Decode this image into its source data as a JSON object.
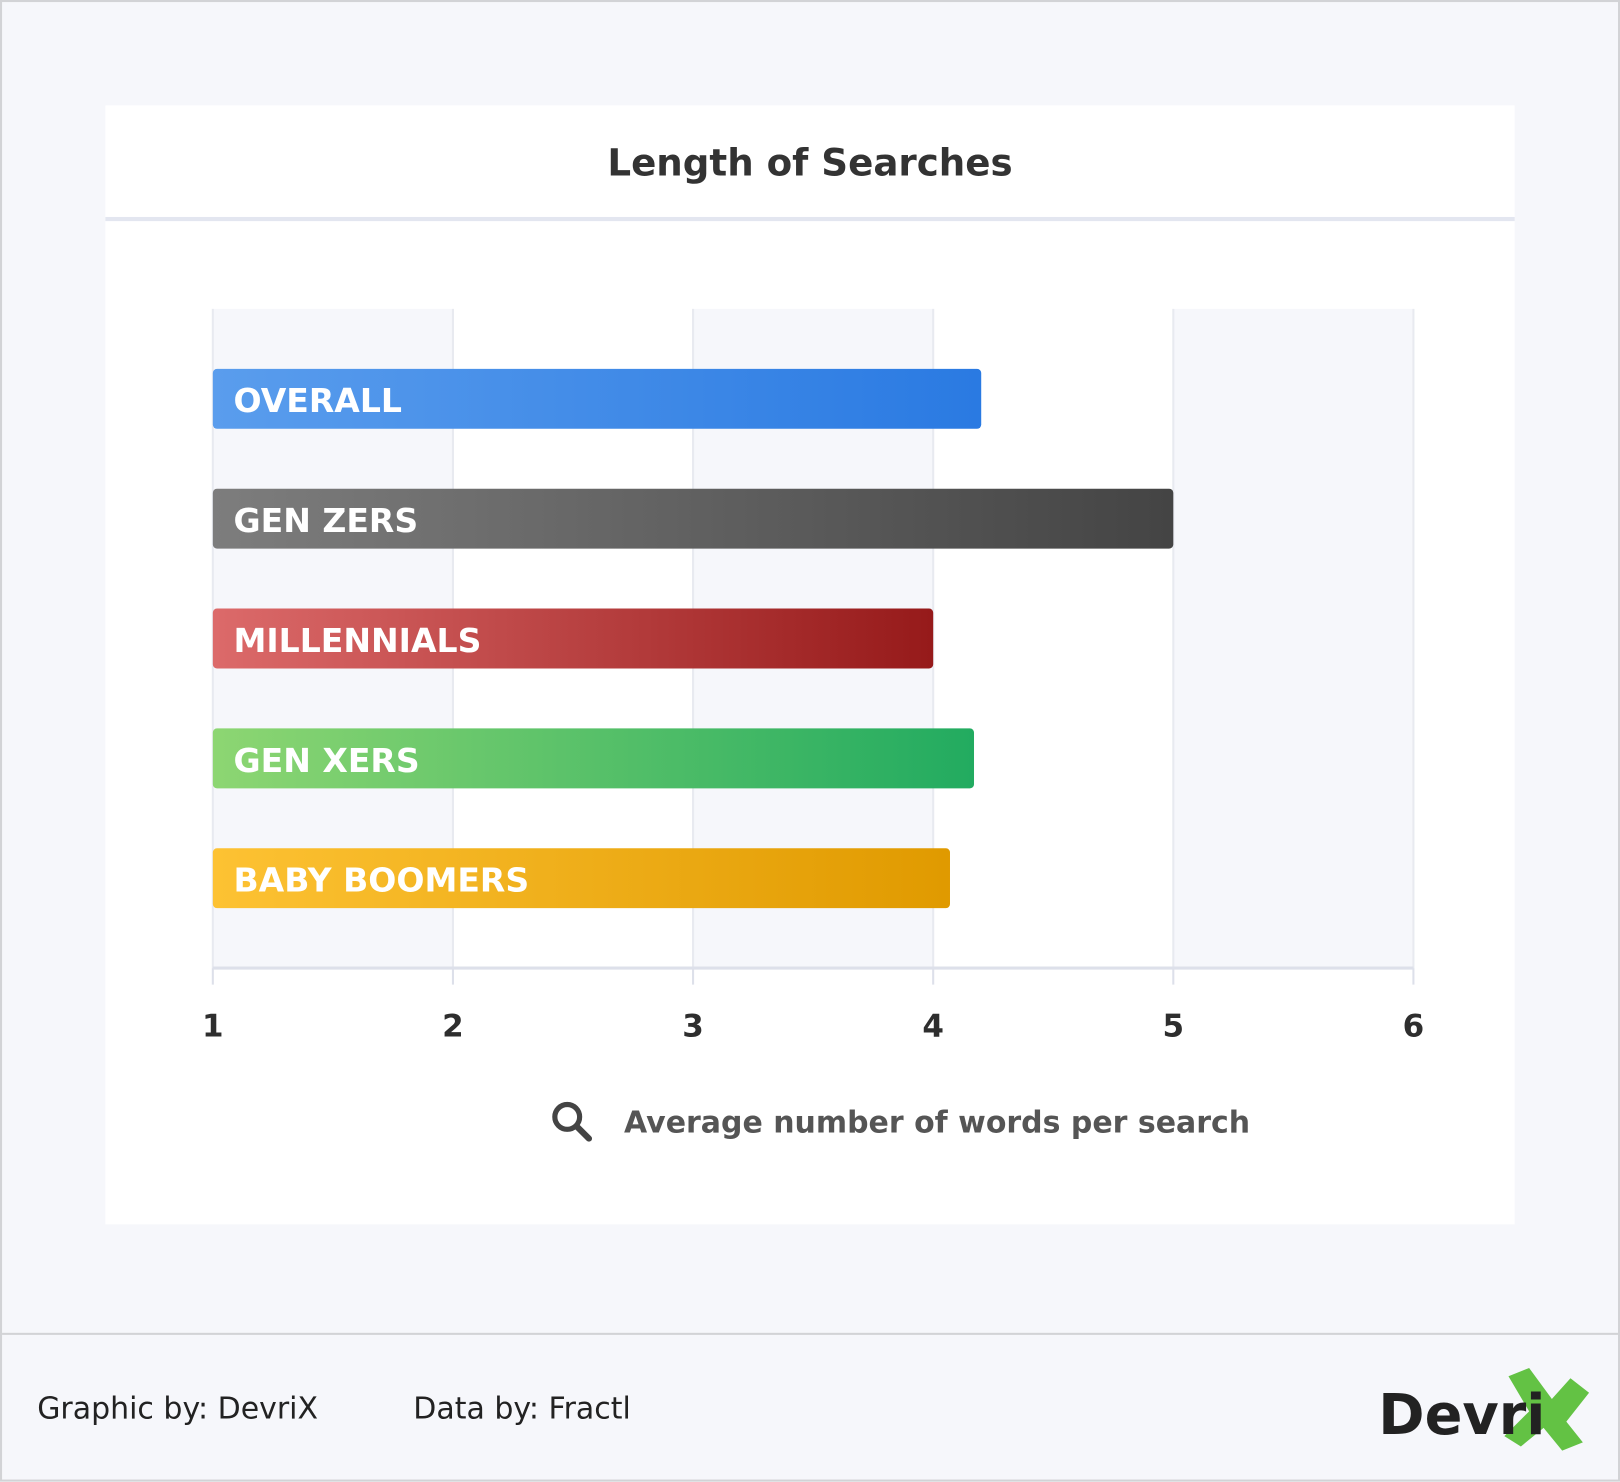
{
  "chart_data": {
    "type": "bar",
    "orientation": "horizontal",
    "title": "Length of Searches",
    "xlabel": "Average number of words per search",
    "ylabel": "",
    "xlim": [
      1,
      6
    ],
    "ticks": [
      "1",
      "2",
      "3",
      "4",
      "5",
      "6"
    ],
    "categories": [
      "OVERALL",
      "GEN ZERS",
      "MILLENNIALS",
      "GEN XERS",
      "BABY BOOMERS"
    ],
    "values": [
      4.2,
      5.0,
      4.0,
      4.17,
      4.07
    ],
    "colors": [
      [
        "#5a9ded",
        "#2a7ae2"
      ],
      [
        "#7d7d7d",
        "#444444"
      ],
      [
        "#dc6a6a",
        "#961a1a"
      ],
      [
        "#8dd672",
        "#22ab60"
      ],
      [
        "#fdc233",
        "#e09a00"
      ]
    ],
    "grid": true
  },
  "footer": {
    "graphic_by": "Graphic by: DevriX",
    "data_by": "Data by: Fractl",
    "logo_text": "DevriX"
  }
}
